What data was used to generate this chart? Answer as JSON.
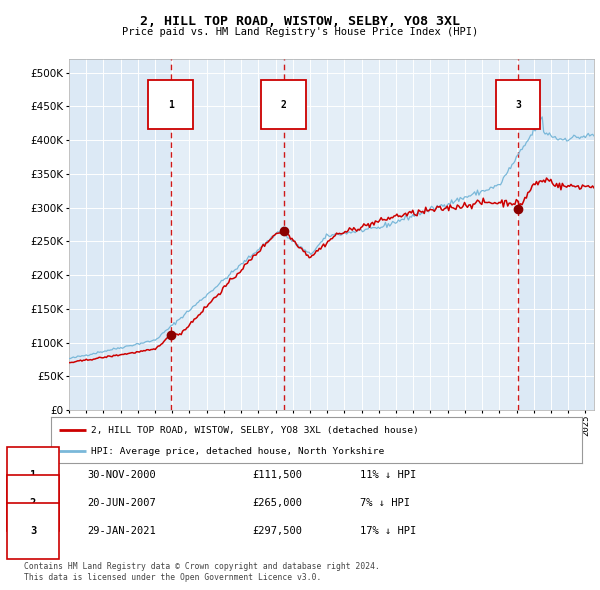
{
  "title_line1": "2, HILL TOP ROAD, WISTOW, SELBY, YO8 3XL",
  "title_line2": "Price paid vs. HM Land Registry's House Price Index (HPI)",
  "ylabel_ticks": [
    "£0",
    "£50K",
    "£100K",
    "£150K",
    "£200K",
    "£250K",
    "£300K",
    "£350K",
    "£400K",
    "£450K",
    "£500K"
  ],
  "ytick_vals": [
    0,
    50000,
    100000,
    150000,
    200000,
    250000,
    300000,
    350000,
    400000,
    450000,
    500000
  ],
  "xlim_start": 1995.0,
  "xlim_end": 2025.5,
  "ylim": [
    0,
    520000
  ],
  "background_color": "#ffffff",
  "plot_bg_color": "#dce9f5",
  "grid_color": "#cccccc",
  "hpi_line_color": "#7ab8d9",
  "price_line_color": "#cc0000",
  "vline_color": "#cc0000",
  "marker_color": "#8b0000",
  "sale_points": [
    {
      "year": 2000.917,
      "price": 111500,
      "label": "1"
    },
    {
      "year": 2007.472,
      "price": 265000,
      "label": "2"
    },
    {
      "year": 2021.083,
      "price": 297500,
      "label": "3"
    }
  ],
  "annotation_box_color": "#cc0000",
  "legend_label_red": "2, HILL TOP ROAD, WISTOW, SELBY, YO8 3XL (detached house)",
  "legend_label_blue": "HPI: Average price, detached house, North Yorkshire",
  "table_rows": [
    {
      "num": "1",
      "date": "30-NOV-2000",
      "price": "£111,500",
      "pct": "11% ↓ HPI"
    },
    {
      "num": "2",
      "date": "20-JUN-2007",
      "price": "£265,000",
      "pct": "7% ↓ HPI"
    },
    {
      "num": "3",
      "date": "29-JAN-2021",
      "price": "£297,500",
      "pct": "17% ↓ HPI"
    }
  ],
  "footnote1": "Contains HM Land Registry data © Crown copyright and database right 2024.",
  "footnote2": "This data is licensed under the Open Government Licence v3.0."
}
